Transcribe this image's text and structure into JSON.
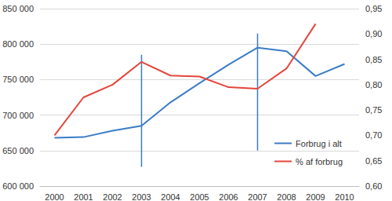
{
  "chart_data": {
    "type": "line",
    "categories": [
      "2000",
      "2001",
      "2002",
      "2003",
      "2004",
      "2005",
      "2006",
      "2007",
      "2008",
      "2009",
      "2010"
    ],
    "series": [
      {
        "name": "Forbrug i alt",
        "color": "#3a7cc6",
        "axis": "y",
        "values": [
          668000,
          669000,
          678000,
          685000,
          718000,
          745000,
          771000,
          795000,
          790000,
          755000,
          772000
        ]
      },
      {
        "name": "% af forbrug",
        "color": "#e5453c",
        "axis": "y2",
        "values": [
          0.7,
          0.775,
          0.8,
          0.845,
          0.818,
          0.816,
          0.795,
          0.792,
          0.832,
          0.92,
          null
        ]
      }
    ],
    "vertical_lines": [
      {
        "x": "2003",
        "y_from": 627000,
        "y_to": 785000,
        "color": "#3a7cc6"
      },
      {
        "x": "2007",
        "y_from": 650000,
        "y_to": 815000,
        "color": "#3a7cc6"
      }
    ],
    "ylim": [
      600000,
      850000
    ],
    "yticks": [
      {
        "value": 600000,
        "label": "600 000"
      },
      {
        "value": 650000,
        "label": "650 000"
      },
      {
        "value": 700000,
        "label": "700 000"
      },
      {
        "value": 750000,
        "label": "750 000"
      },
      {
        "value": 800000,
        "label": "800 000"
      },
      {
        "value": 850000,
        "label": "850 000"
      }
    ],
    "y2lim": [
      0.6,
      0.95
    ],
    "y2ticks": [
      {
        "value": 0.6,
        "label": "0,60"
      },
      {
        "value": 0.65,
        "label": "0,65"
      },
      {
        "value": 0.7,
        "label": "0,70"
      },
      {
        "value": 0.75,
        "label": "0,75"
      },
      {
        "value": 0.8,
        "label": "0,80"
      },
      {
        "value": 0.85,
        "label": "0,85"
      },
      {
        "value": 0.9,
        "label": "0,90"
      },
      {
        "value": 0.95,
        "label": "0,95"
      }
    ],
    "grid": true,
    "legend": "lower right"
  }
}
